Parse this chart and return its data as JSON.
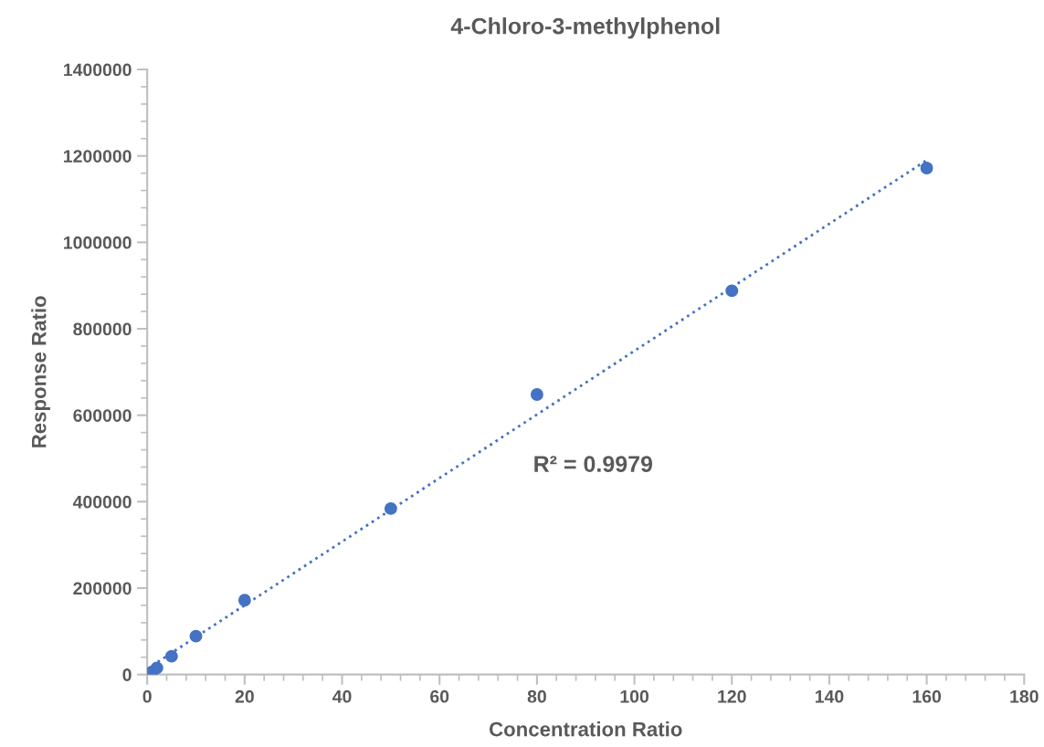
{
  "chart_data": {
    "type": "scatter",
    "title": "4-Chloro-3-methylphenol",
    "xlabel": "Concentration Ratio",
    "ylabel": "Response Ratio",
    "annotations": [
      "R² = 0.9979"
    ],
    "series": [
      {
        "type": "scatter",
        "color": "#4472c4",
        "marker": "circle",
        "x": [
          1,
          2,
          5,
          10,
          20,
          50,
          80,
          120,
          160
        ],
        "values": [
          6300,
          15400,
          42300,
          88800,
          172000,
          384000,
          648000,
          888000,
          1172000
        ]
      },
      {
        "type": "line",
        "color": "#4472c4",
        "line_style": "dotted",
        "x": [
          1,
          160
        ],
        "values": [
          20700,
          1190000
        ]
      }
    ],
    "xlim": [
      0,
      180
    ],
    "xticks": [
      0,
      20,
      40,
      60,
      80,
      100,
      120,
      140,
      160,
      180
    ],
    "ylim": [
      0,
      1400000
    ],
    "yticks": [
      0,
      200000,
      400000,
      600000,
      800000,
      1000000,
      1200000,
      1400000
    ],
    "grid": false,
    "legend": false
  }
}
